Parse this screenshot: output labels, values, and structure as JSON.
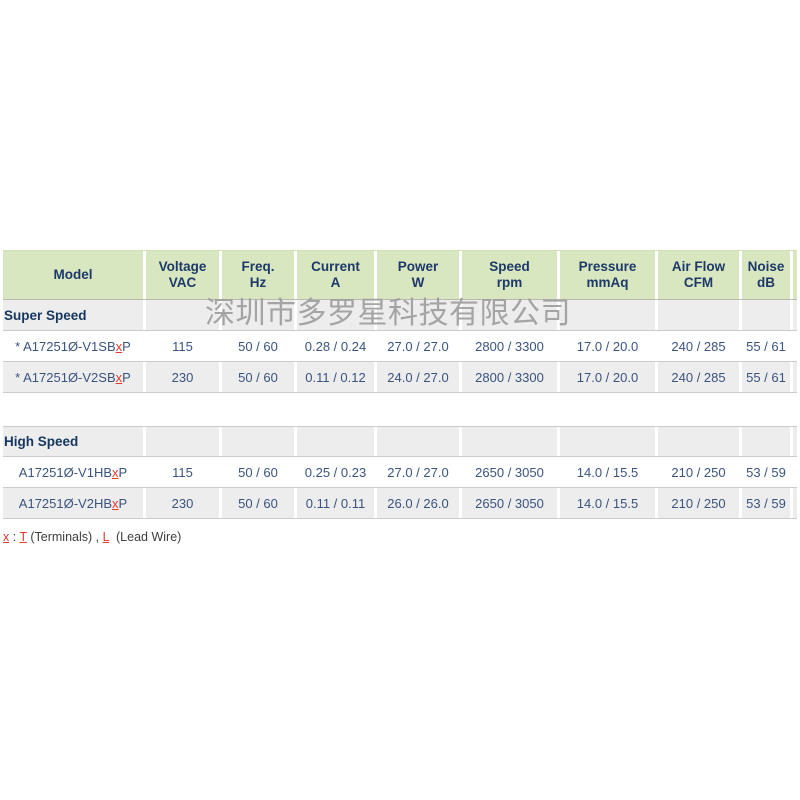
{
  "watermark": {
    "text": "深圳市多罗星科技有限公司"
  },
  "table": {
    "headers": [
      {
        "line1": "Model",
        "line2": ""
      },
      {
        "line1": "Voltage",
        "line2": "VAC"
      },
      {
        "line1": "Freq.",
        "line2": "Hz"
      },
      {
        "line1": "Current",
        "line2": "A"
      },
      {
        "line1": "Power",
        "line2": "W"
      },
      {
        "line1": "Speed",
        "line2": "rpm"
      },
      {
        "line1": "Pressure",
        "line2": "mmAq"
      },
      {
        "line1": "Air Flow",
        "line2": "CFM"
      },
      {
        "line1": "Noise",
        "line2": "dB"
      }
    ],
    "sections": [
      {
        "title": "Super Speed",
        "rows": [
          {
            "model_prefix": "* A17251Ø-V1SB",
            "model_x": "x",
            "model_suffix": "P",
            "voltage": "115",
            "freq": "50 / 60",
            "current": "0.28 / 0.24",
            "power": "27.0 / 27.0",
            "speed": "2800 / 3300",
            "pressure": "17.0 / 20.0",
            "airflow": "240 / 285",
            "noise": "55 / 61"
          },
          {
            "model_prefix": "* A17251Ø-V2SB",
            "model_x": "x",
            "model_suffix": "P",
            "voltage": "230",
            "freq": "50 / 60",
            "current": "0.11 / 0.12",
            "power": "24.0 / 27.0",
            "speed": "2800 / 3300",
            "pressure": "17.0 / 20.0",
            "airflow": "240 / 285",
            "noise": "55 / 61"
          }
        ]
      },
      {
        "title": "High Speed",
        "rows": [
          {
            "model_prefix": "A17251Ø-V1HB",
            "model_x": "x",
            "model_suffix": "P",
            "voltage": "115",
            "freq": "50 / 60",
            "current": "0.25 / 0.23",
            "power": "27.0 / 27.0",
            "speed": "2650 / 3050",
            "pressure": "14.0 / 15.5",
            "airflow": "210 / 250",
            "noise": "53 / 59"
          },
          {
            "model_prefix": "A17251Ø-V2HB",
            "model_x": "x",
            "model_suffix": "P",
            "voltage": "230",
            "freq": "50 / 60",
            "current": "0.11 / 0.11",
            "power": "26.0 / 26.0",
            "speed": "2650 / 3050",
            "pressure": "14.0 / 15.5",
            "airflow": "210 / 250",
            "noise": "53 / 59"
          }
        ]
      }
    ]
  },
  "footnote": {
    "x": "x",
    "sep": " : ",
    "t": "T",
    "mid": " (Terminals) , ",
    "l": "L",
    "tail": "  (Lead Wire)"
  },
  "colors": {
    "header_bg": "#d9e7c1",
    "alt_row_bg": "#ededed",
    "border": "#cbcbcb",
    "header_text": "#1d3968",
    "data_text": "#3a5380",
    "accent_red": "#e23b2e",
    "watermark_gray": "#9e9e9e"
  }
}
